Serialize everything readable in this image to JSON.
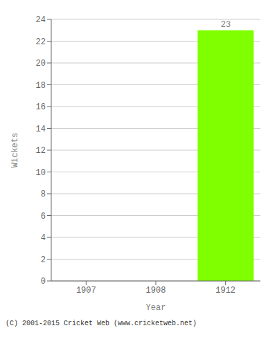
{
  "chart_data": {
    "type": "bar",
    "categories": [
      "1907",
      "1908",
      "1912"
    ],
    "values": [
      0,
      0,
      23
    ],
    "color": "#7FFF00",
    "xlabel": "Year",
    "ylabel": "Wickets",
    "ylim": [
      0,
      24
    ],
    "yticks": [
      0,
      2,
      4,
      6,
      8,
      10,
      12,
      14,
      16,
      18,
      20,
      22,
      24
    ],
    "grid": true,
    "data_labels": true,
    "annotations": [
      "(C) 2001-2015 Cricket Web (www.cricketweb.net)"
    ]
  }
}
